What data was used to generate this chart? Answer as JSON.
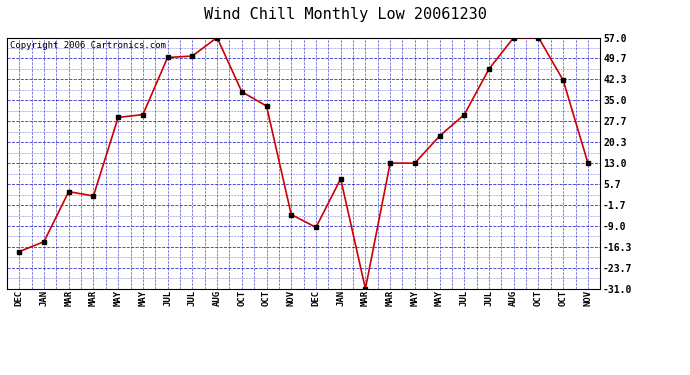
{
  "title": "Wind Chill Monthly Low 20061230",
  "copyright": "Copyright 2006 Cartronics.com",
  "x_labels": [
    "DEC",
    "JAN",
    "MAR",
    "MAR",
    "MAY",
    "MAY",
    "JUL",
    "JUL",
    "AUG",
    "OCT",
    "OCT",
    "NOV",
    "DEC",
    "JAN",
    "MAR",
    "MAR",
    "MAY",
    "MAY",
    "JUL",
    "JUL",
    "AUG",
    "OCT",
    "OCT",
    "NOV"
  ],
  "y_values": [
    -18.0,
    -14.5,
    3.0,
    1.5,
    29.0,
    30.0,
    50.0,
    50.5,
    57.0,
    38.0,
    33.0,
    -5.0,
    -9.5,
    7.5,
    -31.0,
    13.0,
    13.0,
    22.5,
    30.0,
    46.0,
    57.0,
    57.0,
    42.0,
    13.0
  ],
  "y_ticks": [
    57.0,
    49.7,
    42.3,
    35.0,
    27.7,
    20.3,
    13.0,
    5.7,
    -1.7,
    -9.0,
    -16.3,
    -23.7,
    -31.0
  ],
  "ylim": [
    -31.0,
    57.0
  ],
  "line_color": "#cc0000",
  "marker_color": "#000000",
  "grid_color": "#0000bb",
  "bg_color": "#ffffff",
  "title_fontsize": 11,
  "copyright_fontsize": 6.5
}
